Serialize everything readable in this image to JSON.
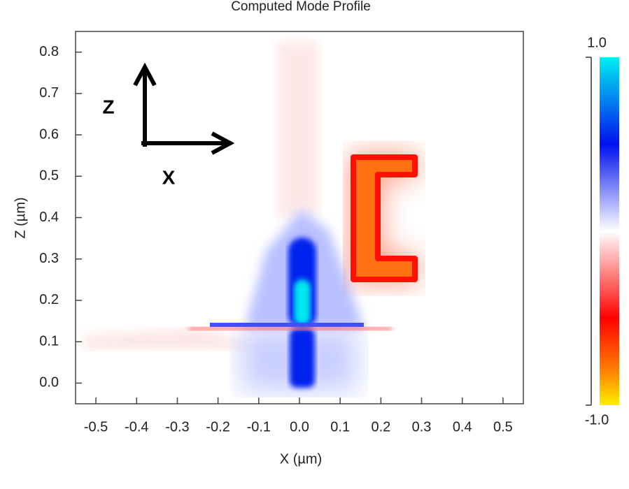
{
  "chart_data": {
    "type": "heatmap",
    "title": "Computed Mode Profile",
    "xlabel": "X (µm)",
    "ylabel": "Z (µm)",
    "xlim": [
      -0.55,
      0.55
    ],
    "xticks": [
      -0.5,
      -0.4,
      -0.3,
      -0.2,
      -0.1,
      {
        "value": 0,
        "label": "0.0"
      },
      0.1,
      0.2,
      0.3,
      0.4,
      0.5
    ],
    "ylim": [
      -0.05,
      0.85
    ],
    "yticks": [
      {
        "value": 0,
        "label": "0.0"
      },
      0.1,
      0.2,
      0.3,
      0.4,
      0.5,
      0.6,
      0.7,
      0.8
    ],
    "clim": [
      -1,
      1
    ],
    "cticks": [
      {
        "value": 1,
        "label": "1.0"
      },
      {
        "value": -1,
        "label": "-1.0"
      }
    ],
    "annotations": [
      "Z",
      "X"
    ]
  }
}
